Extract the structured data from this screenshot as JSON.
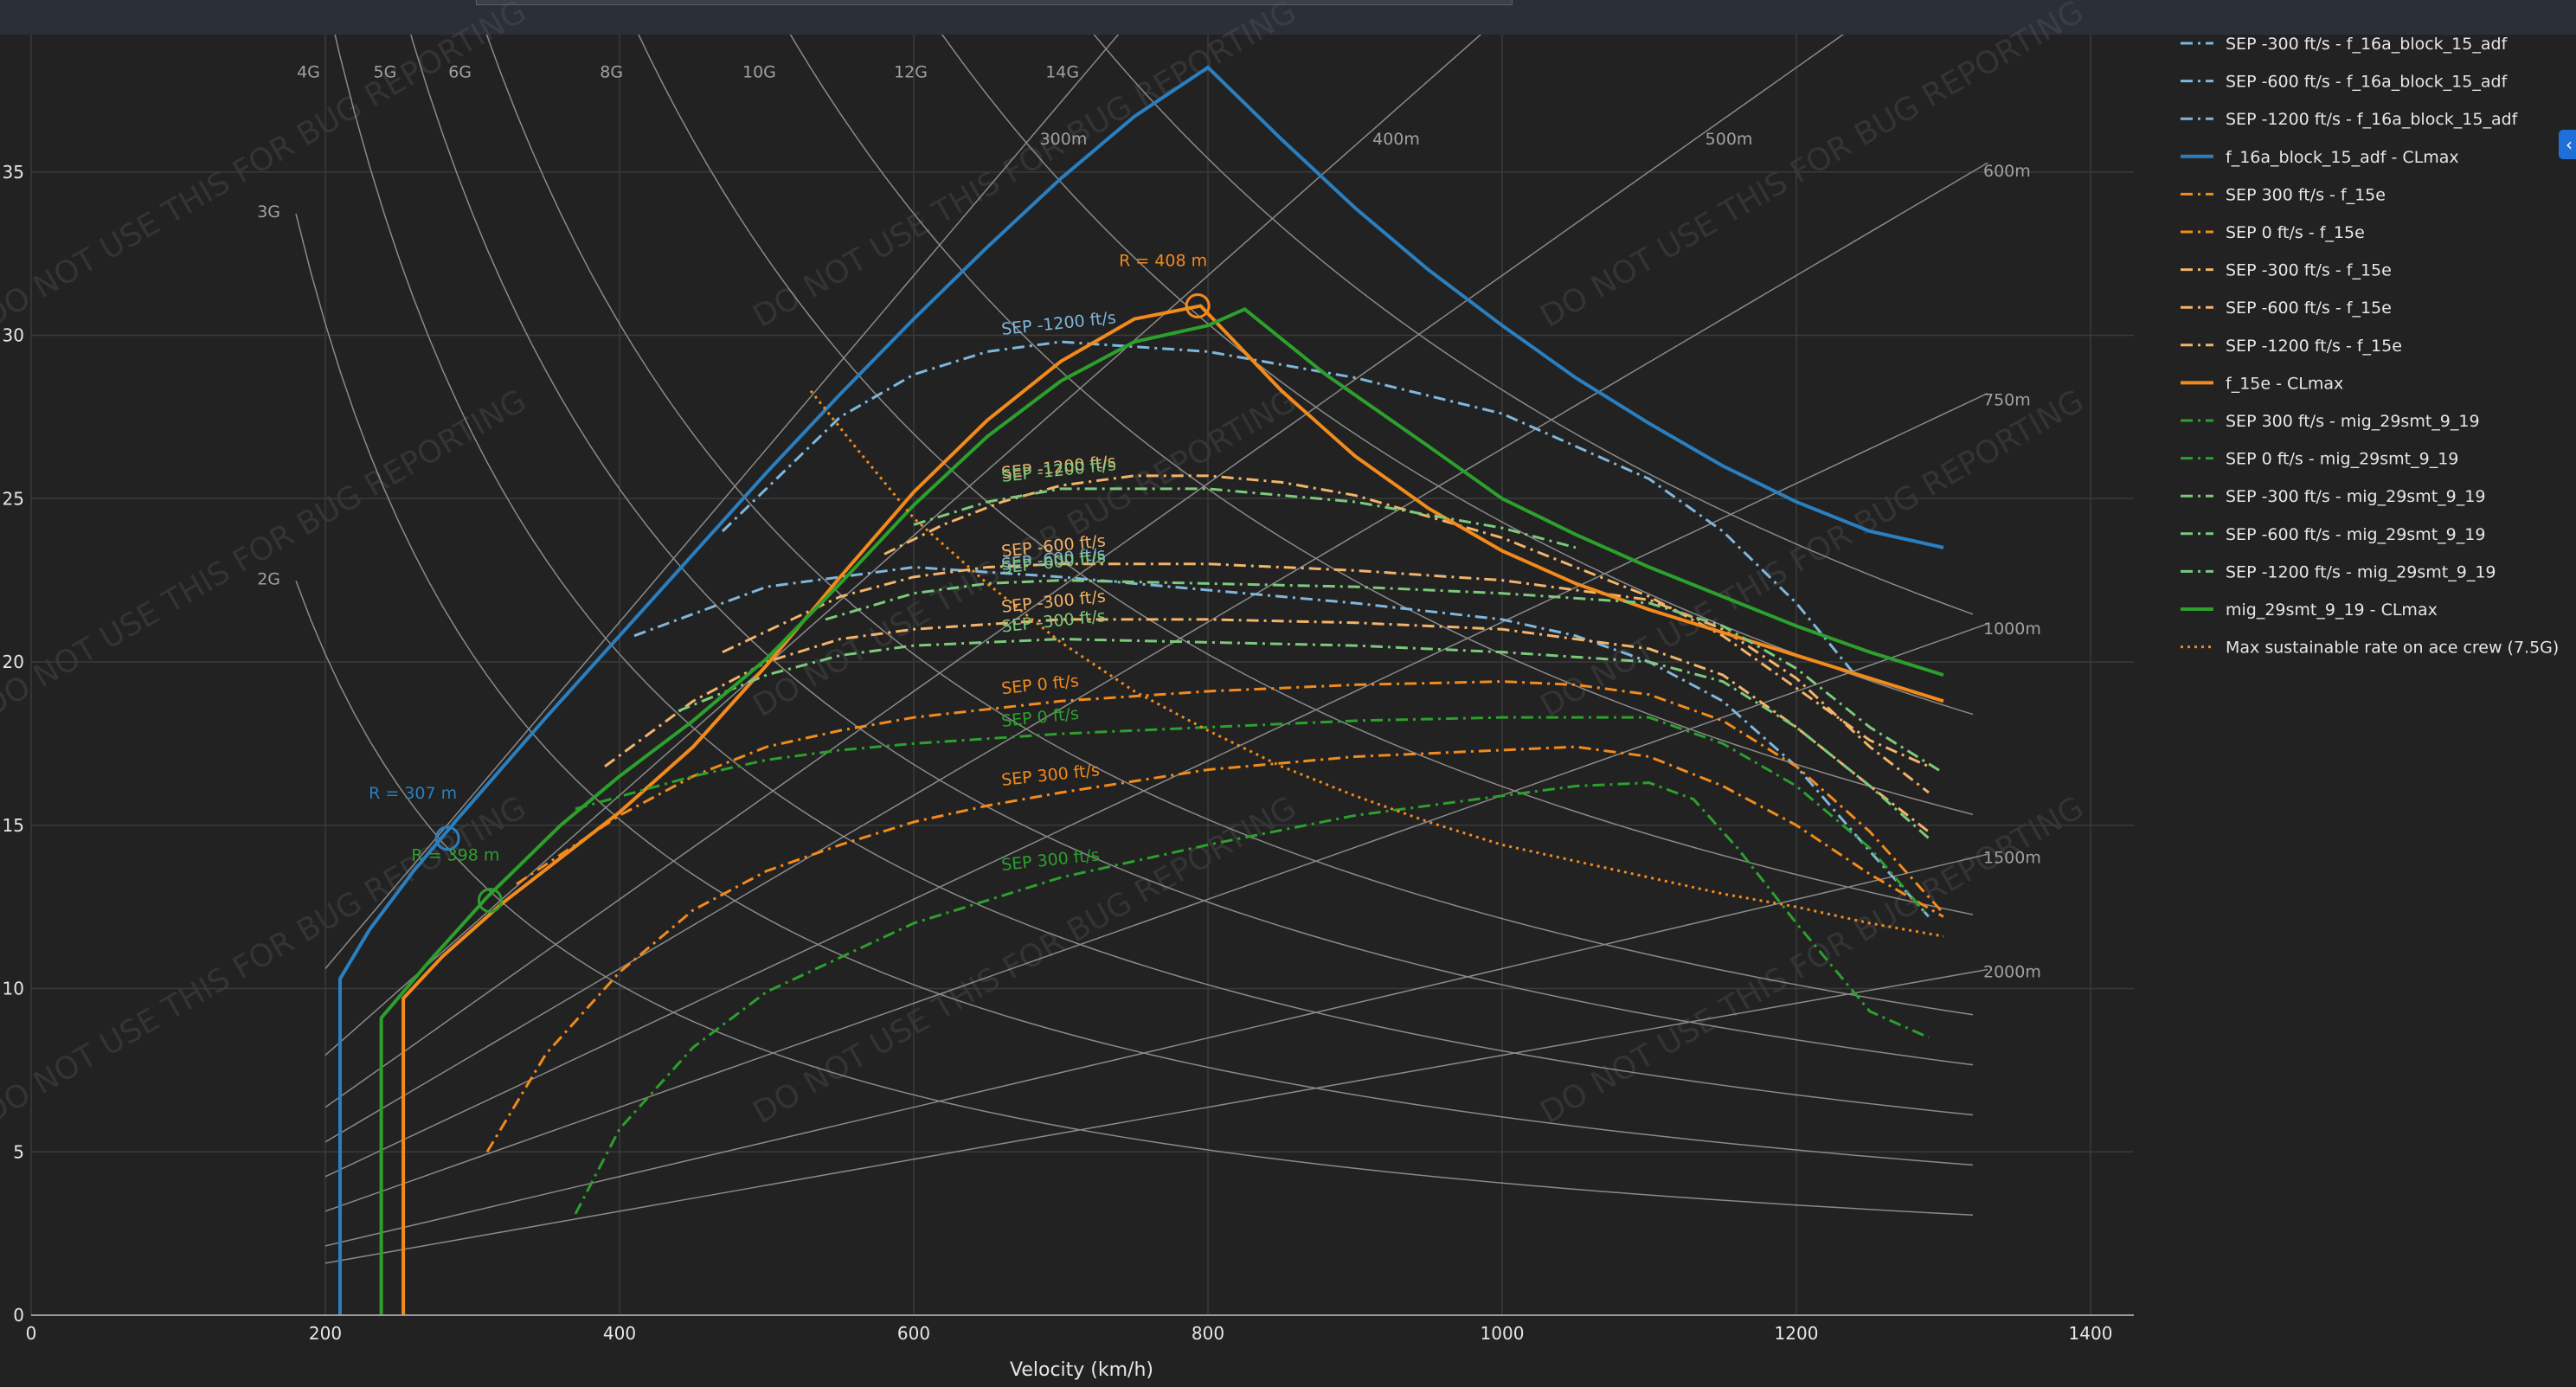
{
  "toolbar": {
    "search_value": ""
  },
  "side_tab": {
    "icon": "chevron-left-icon",
    "glyph": "‹"
  },
  "colors": {
    "background": "#222222",
    "grid": "#3a3a3a",
    "f16": "#2a7fc0",
    "f16_sep": "#7fb6dc",
    "f15": "#f28a1c",
    "f15_sep": "#f2b36a",
    "mig": "#2ca02c",
    "mig_sep": "#7cc97c",
    "guide": "#8a8a8a",
    "text": "#d0d0d0",
    "tick": "#e6e6e6"
  },
  "chart_data": {
    "type": "line",
    "title": "",
    "xlabel": "Velocity (km/h)",
    "ylabel": "",
    "xlim": [
      0,
      1430
    ],
    "ylim": [
      0,
      39
    ],
    "grid": true,
    "legend_position": "right",
    "x_ticks": [
      0,
      200,
      400,
      600,
      800,
      1000,
      1200,
      1400
    ],
    "y_ticks": [
      0,
      5,
      10,
      15,
      20,
      25,
      30,
      35
    ],
    "watermark": "DO NOT USE THIS FOR BUG REPORTING",
    "g_lines": [
      {
        "label": "2G",
        "g": 2
      },
      {
        "label": "3G",
        "g": 3
      },
      {
        "label": "4G",
        "g": 4
      },
      {
        "label": "5G",
        "g": 5
      },
      {
        "label": "6G",
        "g": 6
      },
      {
        "label": "8G",
        "g": 8
      },
      {
        "label": "10G",
        "g": 10
      },
      {
        "label": "12G",
        "g": 12
      },
      {
        "label": "14G",
        "g": 14
      }
    ],
    "radius_lines": [
      {
        "label": "300m",
        "r": 300
      },
      {
        "label": "400m",
        "r": 400
      },
      {
        "label": "500m",
        "r": 500
      },
      {
        "label": "600m",
        "r": 600
      },
      {
        "label": "750m",
        "r": 750
      },
      {
        "label": "1000m",
        "r": 1000
      },
      {
        "label": "1500m",
        "r": 1500
      },
      {
        "label": "2000m",
        "r": 2000
      }
    ],
    "series": [
      {
        "name": "SEP -300 ft/s - f_16a_block_15_adf",
        "style": "dashdot",
        "color_key": "f16_sep",
        "legend_only": true,
        "x": [],
        "y": []
      },
      {
        "name": "SEP -600 ft/s - f_16a_block_15_adf",
        "style": "dashdot",
        "color_key": "f16_sep",
        "curve_label": "SEP -600 ft/s",
        "x": [
          410,
          500,
          600,
          700,
          800,
          900,
          1000,
          1050,
          1100,
          1150,
          1200,
          1250,
          1290
        ],
        "y": [
          20.8,
          22.3,
          22.9,
          22.6,
          22.2,
          21.8,
          21.3,
          20.8,
          20.0,
          18.8,
          16.8,
          14.2,
          12.2
        ]
      },
      {
        "name": "SEP -1200 ft/s - f_16a_block_15_adf",
        "style": "dashdot",
        "color_key": "f16_sep",
        "curve_label": "SEP -1200 ft/s",
        "x": [
          470,
          550,
          600,
          650,
          700,
          800,
          900,
          1000,
          1100,
          1150,
          1200,
          1240
        ],
        "y": [
          24.0,
          27.5,
          28.8,
          29.5,
          29.8,
          29.5,
          28.7,
          27.6,
          25.6,
          24.0,
          21.8,
          19.6
        ]
      },
      {
        "name": "f_16a_block_15_adf - CLmax",
        "style": "solid",
        "color_key": "f16",
        "x": [
          210,
          210,
          230,
          260,
          290,
          350,
          400,
          450,
          500,
          550,
          600,
          650,
          700,
          750,
          800,
          850,
          900,
          950,
          1000,
          1050,
          1100,
          1150,
          1200,
          1250,
          1300
        ],
        "y": [
          0,
          10.3,
          11.8,
          13.6,
          15.2,
          18.3,
          20.8,
          23.3,
          25.8,
          28.2,
          30.5,
          32.7,
          34.8,
          36.7,
          38.2,
          36.0,
          33.9,
          32.0,
          30.3,
          28.7,
          27.3,
          26.0,
          24.9,
          24.0,
          23.5
        ]
      },
      {
        "name": "SEP 300 ft/s - f_15e",
        "style": "dashdot",
        "color_key": "f15",
        "curve_label": "SEP 300 ft/s",
        "x": [
          310,
          350,
          400,
          450,
          500,
          550,
          600,
          650,
          700,
          800,
          900,
          1000,
          1050,
          1100,
          1150,
          1200,
          1250,
          1300
        ],
        "y": [
          5.0,
          8.0,
          10.5,
          12.4,
          13.6,
          14.4,
          15.1,
          15.6,
          16.0,
          16.7,
          17.1,
          17.3,
          17.4,
          17.1,
          16.2,
          15.0,
          13.5,
          12.2
        ]
      },
      {
        "name": "SEP 0 ft/s - f_15e",
        "style": "dashdot",
        "color_key": "f15",
        "curve_label": "SEP 0 ft/s",
        "x": [
          330,
          400,
          450,
          500,
          550,
          600,
          700,
          800,
          900,
          1000,
          1050,
          1100,
          1150,
          1200,
          1250,
          1300
        ],
        "y": [
          13.2,
          15.3,
          16.5,
          17.4,
          17.9,
          18.3,
          18.8,
          19.1,
          19.3,
          19.4,
          19.3,
          19.0,
          18.2,
          16.8,
          14.8,
          12.3
        ]
      },
      {
        "name": "SEP -300 ft/s - f_15e",
        "style": "dashdot",
        "color_key": "f15_sep",
        "curve_label": "SEP -300 ft/s",
        "x": [
          390,
          450,
          500,
          550,
          600,
          700,
          800,
          900,
          1000,
          1100,
          1150,
          1200,
          1250,
          1290
        ],
        "y": [
          16.8,
          18.8,
          20.0,
          20.7,
          21.0,
          21.3,
          21.3,
          21.2,
          21.0,
          20.4,
          19.6,
          18.0,
          16.2,
          14.8
        ]
      },
      {
        "name": "SEP -600 ft/s - f_15e",
        "style": "dashdot",
        "color_key": "f15_sep",
        "curve_label": "SEP -600 ft/s",
        "x": [
          470,
          550,
          600,
          650,
          700,
          800,
          900,
          1000,
          1100,
          1150,
          1200,
          1250,
          1290
        ],
        "y": [
          20.3,
          22.0,
          22.6,
          22.9,
          23.0,
          23.0,
          22.8,
          22.5,
          21.9,
          21.0,
          19.5,
          17.4,
          16.0
        ]
      },
      {
        "name": "SEP -1200 ft/s - f_15e",
        "style": "dashdot",
        "color_key": "f15_sep",
        "curve_label": "SEP -1200 ft/s",
        "x": [
          580,
          620,
          660,
          700,
          750,
          800,
          850,
          900,
          1000,
          1100,
          1150,
          1200,
          1250,
          1290
        ],
        "y": [
          23.3,
          24.2,
          24.9,
          25.4,
          25.7,
          25.7,
          25.5,
          25.1,
          23.8,
          22.0,
          20.8,
          19.2,
          17.6,
          16.8
        ]
      },
      {
        "name": "f_15e - CLmax",
        "style": "solid",
        "color_key": "f15",
        "x": [
          253,
          253,
          280,
          320,
          360,
          400,
          450,
          500,
          550,
          600,
          650,
          700,
          750,
          795,
          850,
          900,
          950,
          1000,
          1050,
          1100,
          1150,
          1200,
          1250,
          1300
        ],
        "y": [
          0,
          9.7,
          11.0,
          12.6,
          14.0,
          15.4,
          17.4,
          19.9,
          22.6,
          25.2,
          27.4,
          29.2,
          30.5,
          30.9,
          28.3,
          26.3,
          24.7,
          23.4,
          22.4,
          21.6,
          20.9,
          20.2,
          19.5,
          18.8
        ]
      },
      {
        "name": "SEP 300 ft/s - mig_29smt_9_19",
        "style": "dashdot",
        "color_key": "mig",
        "curve_label": "SEP 300 ft/s",
        "x": [
          370,
          400,
          450,
          500,
          600,
          700,
          800,
          900,
          1000,
          1050,
          1100,
          1130,
          1160,
          1200,
          1250,
          1290
        ],
        "y": [
          3.1,
          5.7,
          8.2,
          9.9,
          12.0,
          13.4,
          14.4,
          15.3,
          15.9,
          16.2,
          16.3,
          15.8,
          14.3,
          12.0,
          9.3,
          8.5
        ]
      },
      {
        "name": "SEP 0 ft/s - mig_29smt_9_19",
        "style": "dashdot",
        "color_key": "mig",
        "curve_label": "SEP 0 ft/s",
        "x": [
          370,
          450,
          500,
          550,
          600,
          700,
          800,
          900,
          1000,
          1100,
          1150,
          1200,
          1250,
          1290
        ],
        "y": [
          15.5,
          16.5,
          17.0,
          17.3,
          17.5,
          17.8,
          18.0,
          18.2,
          18.3,
          18.3,
          17.5,
          16.2,
          14.3,
          12.2
        ]
      },
      {
        "name": "SEP -300 ft/s - mig_29smt_9_19",
        "style": "dashdot",
        "color_key": "mig_sep",
        "curve_label": "SEP -300 ft/s",
        "x": [
          440,
          500,
          550,
          600,
          700,
          800,
          900,
          1000,
          1100,
          1150,
          1200,
          1250,
          1290
        ],
        "y": [
          18.5,
          19.6,
          20.2,
          20.5,
          20.7,
          20.6,
          20.5,
          20.3,
          20.0,
          19.4,
          18.0,
          16.2,
          14.6
        ]
      },
      {
        "name": "SEP -600 ft/s - mig_29smt_9_19",
        "style": "dashdot",
        "color_key": "mig_sep",
        "curve_label": "SEP -600 ft/s",
        "x": [
          540,
          600,
          650,
          700,
          800,
          900,
          1000,
          1100,
          1150,
          1200,
          1250,
          1300
        ],
        "y": [
          21.3,
          22.1,
          22.4,
          22.5,
          22.4,
          22.3,
          22.1,
          21.8,
          21.1,
          19.8,
          18.0,
          16.6
        ]
      },
      {
        "name": "SEP -1200 ft/s - mig_29smt_9_19",
        "style": "dashdot",
        "color_key": "mig_sep",
        "curve_label": "SEP -1200 ft/s",
        "x": [
          600,
          650,
          700,
          800,
          900,
          1000,
          1050
        ],
        "y": [
          24.2,
          24.9,
          25.3,
          25.3,
          24.9,
          24.1,
          23.5
        ]
      },
      {
        "name": "mig_29smt_9_19 - CLmax",
        "style": "solid",
        "color_key": "mig",
        "x": [
          238,
          238,
          270,
          310,
          360,
          400,
          450,
          500,
          550,
          600,
          650,
          700,
          750,
          800,
          825,
          880,
          950,
          1000,
          1050,
          1100,
          1150,
          1200,
          1250,
          1300
        ],
        "y": [
          0,
          9.1,
          10.8,
          12.8,
          15.0,
          16.5,
          18.2,
          20.1,
          22.4,
          24.8,
          26.9,
          28.6,
          29.8,
          30.3,
          30.8,
          28.8,
          26.6,
          25.0,
          23.9,
          22.9,
          22.0,
          21.1,
          20.3,
          19.6
        ]
      },
      {
        "name": "Max sustainable rate on ace crew (7.5G)",
        "style": "dot",
        "color_key": "f15",
        "x": [
          530,
          560,
          600,
          650,
          700,
          750,
          800,
          850,
          900,
          950,
          1000,
          1050,
          1100,
          1150,
          1200,
          1250,
          1300
        ],
        "y": [
          28.3,
          26.6,
          24.4,
          22.4,
          20.6,
          19.1,
          17.9,
          16.8,
          15.9,
          15.1,
          14.4,
          13.9,
          13.4,
          12.9,
          12.5,
          12.0,
          11.6
        ]
      }
    ],
    "markers": [
      {
        "label": "R = 307 m",
        "x": 283,
        "y": 14.6,
        "color_key": "f16"
      },
      {
        "label": "R = 398 m",
        "x": 312,
        "y": 12.7,
        "color_key": "mig"
      },
      {
        "label": "R = 408 m",
        "x": 793,
        "y": 30.9,
        "color_key": "f15"
      }
    ]
  }
}
